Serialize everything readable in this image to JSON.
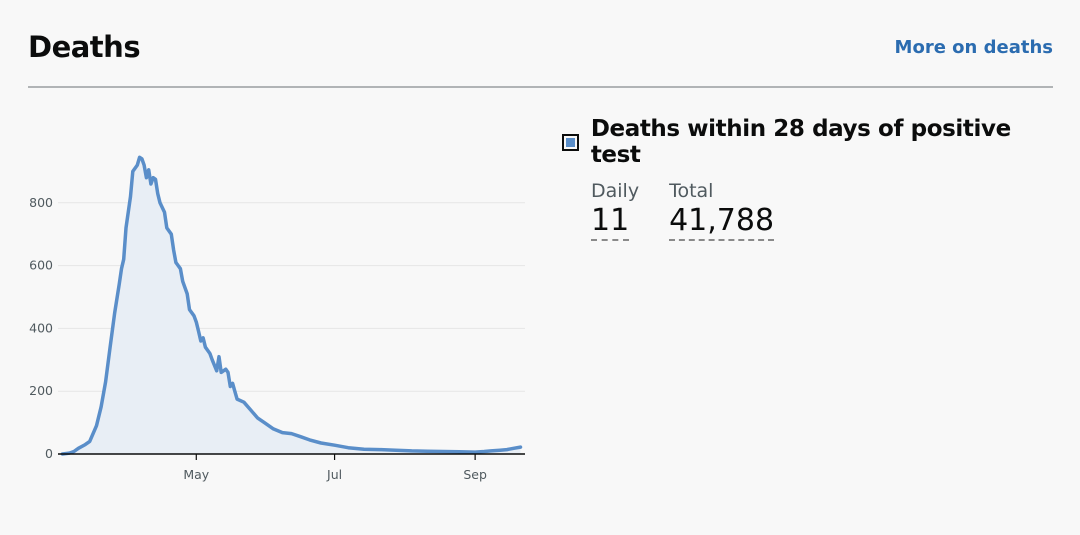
{
  "header": {
    "title": "Deaths",
    "more_link": "More on deaths"
  },
  "metric": {
    "name": "Deaths within 28 days of positive test",
    "swatch_color": "#5a8ec9",
    "daily_label": "Daily",
    "daily_value": "11",
    "total_label": "Total",
    "total_value": "41,788"
  },
  "chart_data": {
    "type": "area",
    "title": "",
    "xlabel": "",
    "ylabel": "",
    "x_range": [
      "2020-03-01",
      "2020-09-23"
    ],
    "ylim": [
      0,
      1000
    ],
    "y_ticks": [
      0,
      200,
      400,
      600,
      800
    ],
    "x_ticks": [
      {
        "date": "2020-05-01",
        "label": "May"
      },
      {
        "date": "2020-07-01",
        "label": "Jul"
      },
      {
        "date": "2020-09-01",
        "label": "Sep"
      }
    ],
    "grid": true,
    "line_color": "#5a8ec9",
    "fill_color": "#e8eef5",
    "series": [
      {
        "points": [
          [
            "2020-03-03",
            0
          ],
          [
            "2020-03-06",
            3
          ],
          [
            "2020-03-08",
            8
          ],
          [
            "2020-03-10",
            18
          ],
          [
            "2020-03-13",
            30
          ],
          [
            "2020-03-15",
            40
          ],
          [
            "2020-03-18",
            90
          ],
          [
            "2020-03-20",
            150
          ],
          [
            "2020-03-22",
            230
          ],
          [
            "2020-03-24",
            340
          ],
          [
            "2020-03-26",
            450
          ],
          [
            "2020-03-28",
            540
          ],
          [
            "2020-03-29",
            590
          ],
          [
            "2020-03-30",
            620
          ],
          [
            "2020-03-31",
            720
          ],
          [
            "2020-04-02",
            820
          ],
          [
            "2020-04-03",
            900
          ],
          [
            "2020-04-05",
            920
          ],
          [
            "2020-04-06",
            945
          ],
          [
            "2020-04-07",
            940
          ],
          [
            "2020-04-08",
            920
          ],
          [
            "2020-04-09",
            880
          ],
          [
            "2020-04-10",
            905
          ],
          [
            "2020-04-11",
            860
          ],
          [
            "2020-04-12",
            880
          ],
          [
            "2020-04-13",
            875
          ],
          [
            "2020-04-14",
            830
          ],
          [
            "2020-04-15",
            800
          ],
          [
            "2020-04-17",
            770
          ],
          [
            "2020-04-18",
            720
          ],
          [
            "2020-04-20",
            700
          ],
          [
            "2020-04-21",
            650
          ],
          [
            "2020-04-22",
            610
          ],
          [
            "2020-04-24",
            590
          ],
          [
            "2020-04-25",
            550
          ],
          [
            "2020-04-27",
            510
          ],
          [
            "2020-04-28",
            460
          ],
          [
            "2020-04-30",
            440
          ],
          [
            "2020-05-01",
            420
          ],
          [
            "2020-05-02",
            390
          ],
          [
            "2020-05-03",
            360
          ],
          [
            "2020-05-04",
            370
          ],
          [
            "2020-05-05",
            340
          ],
          [
            "2020-05-07",
            320
          ],
          [
            "2020-05-08",
            300
          ],
          [
            "2020-05-10",
            265
          ],
          [
            "2020-05-11",
            310
          ],
          [
            "2020-05-12",
            260
          ],
          [
            "2020-05-14",
            270
          ],
          [
            "2020-05-15",
            260
          ],
          [
            "2020-05-16",
            215
          ],
          [
            "2020-05-17",
            225
          ],
          [
            "2020-05-18",
            200
          ],
          [
            "2020-05-19",
            175
          ],
          [
            "2020-05-22",
            165
          ],
          [
            "2020-05-25",
            140
          ],
          [
            "2020-05-28",
            115
          ],
          [
            "2020-05-31",
            100
          ],
          [
            "2020-06-04",
            80
          ],
          [
            "2020-06-08",
            68
          ],
          [
            "2020-06-12",
            65
          ],
          [
            "2020-06-16",
            55
          ],
          [
            "2020-06-20",
            45
          ],
          [
            "2020-06-25",
            35
          ],
          [
            "2020-07-01",
            28
          ],
          [
            "2020-07-07",
            20
          ],
          [
            "2020-07-14",
            15
          ],
          [
            "2020-07-21",
            14
          ],
          [
            "2020-07-28",
            12
          ],
          [
            "2020-08-04",
            10
          ],
          [
            "2020-08-11",
            9
          ],
          [
            "2020-08-18",
            8
          ],
          [
            "2020-08-25",
            7
          ],
          [
            "2020-09-01",
            6
          ],
          [
            "2020-09-05",
            8
          ],
          [
            "2020-09-08",
            10
          ],
          [
            "2020-09-12",
            12
          ],
          [
            "2020-09-15",
            14
          ],
          [
            "2020-09-18",
            18
          ],
          [
            "2020-09-21",
            22
          ]
        ]
      }
    ]
  }
}
